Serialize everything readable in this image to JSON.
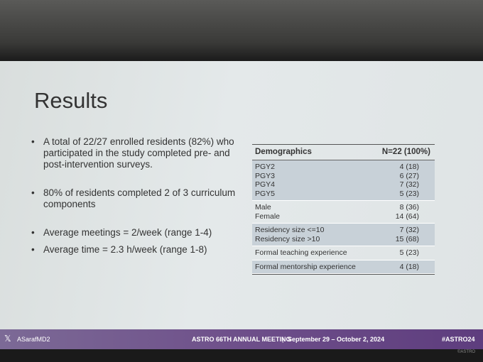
{
  "slide": {
    "title": "Results",
    "bullets": [
      "A total of 22/27 enrolled residents (82%) who participated in the study completed pre- and post-intervention surveys.",
      "80% of residents completed 2 of 3 curriculum components",
      "Average meetings = 2/week (range 1-4)",
      "Average time = 2.3 h/week (range 1-8)"
    ],
    "table": {
      "header": [
        "Demographics",
        "N=22 (100%)"
      ],
      "groups": [
        [
          [
            "PGY2",
            "4 (18)"
          ],
          [
            "PGY3",
            "6 (27)"
          ],
          [
            "PGY4",
            "7 (32)"
          ],
          [
            "PGY5",
            "5 (23)"
          ]
        ],
        [
          [
            "Male",
            "8 (36)"
          ],
          [
            "Female",
            "14 (64)"
          ]
        ],
        [
          [
            "Residency size <=10",
            "7 (32)"
          ],
          [
            "Residency size >10",
            "15 (68)"
          ]
        ],
        [
          [
            "Formal teaching experience",
            "5 (23)"
          ]
        ],
        [
          [
            "Formal mentorship experience",
            "4 (18)"
          ]
        ]
      ]
    }
  },
  "footer": {
    "handle": "ASarafMD2",
    "meeting": "ASTRO 66TH ANNUAL MEETING",
    "separator": "|",
    "dates": "September 29 – October 2, 2024",
    "hashtag": "#ASTRO24",
    "copyright": "©ASTRO"
  }
}
